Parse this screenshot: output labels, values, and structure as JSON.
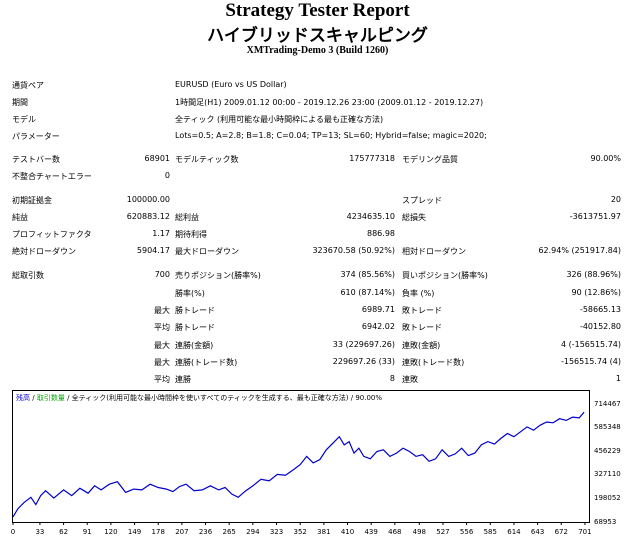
{
  "header": {
    "title": "Strategy Tester Report",
    "subtitle": "ハイブリッドスキャルピング",
    "build": "XMTrading-Demo 3 (Build 1260)"
  },
  "info": [
    {
      "label": "通貨ペア",
      "value": "EURUSD (Euro vs US Dollar)"
    },
    {
      "label": "期間",
      "value": "1時間足(H1) 2009.01.12 00:00 - 2019.12.26 23:00 (2009.01.12 - 2019.12.27)"
    },
    {
      "label": "モデル",
      "value": "全ティック (利用可能な最小時間枠による最も正確な方法)"
    },
    {
      "label": "パラメーター",
      "value": "Lots=0.5; A=2.8; B=1.8; C=0.04; TP=13; SL=60; Hybrid=false; magic=2020;"
    }
  ],
  "stats": {
    "bars_label": "テストバー数",
    "bars": "68901",
    "ticks_label": "モデルティック数",
    "ticks": "175777318",
    "quality_label": "モデリング品質",
    "quality": "90.00%",
    "mismatch_label": "不整合チャートエラー",
    "mismatch": "0",
    "deposit_label": "初期証拠金",
    "deposit": "100000.00",
    "spread_label": "スプレッド",
    "spread": "20",
    "net_label": "純益",
    "net": "620883.12",
    "gross_profit_label": "総利益",
    "gross_profit": "4234635.10",
    "gross_loss_label": "総損失",
    "gross_loss": "-3613751.97",
    "pf_label": "プロフィットファクタ",
    "pf": "1.17",
    "payoff_label": "期待利得",
    "payoff": "886.98",
    "abs_dd_label": "絶対ドローダウン",
    "abs_dd": "5904.17",
    "max_dd_label": "最大ドローダウン",
    "max_dd": "323670.58 (50.92%)",
    "rel_dd_label": "相対ドローダウン",
    "rel_dd": "62.94% (251917.84)",
    "trades_label": "総取引数",
    "trades": "700",
    "short_label": "売りポジション(勝率%)",
    "short": "374 (85.56%)",
    "long_label": "買いポジション(勝率%)",
    "long": "326 (88.96%)",
    "win_label": "勝率(%)",
    "win": "610 (87.14%)",
    "loss_label": "負率 (%)",
    "loss": "90 (12.86%)",
    "max_label": "最大",
    "avg_label": "平均",
    "largest_win_label": "勝トレード",
    "largest_win": "6989.71",
    "largest_loss_label": "敗トレード",
    "largest_loss": "-58665.13",
    "avg_win_label": "勝トレード",
    "avg_win": "6942.02",
    "avg_loss_label": "敗トレード",
    "avg_loss": "-40152.80",
    "max_cons_win_amt_label": "連勝(金額)",
    "max_cons_win_amt": "33 (229697.26)",
    "max_cons_loss_amt_label": "連敗(金額)",
    "max_cons_loss_amt": "4 (-156515.74)",
    "max_cons_win_tr_label": "連勝(トレード数)",
    "max_cons_win_tr": "229697.26 (33)",
    "max_cons_loss_tr_label": "連敗(トレード数)",
    "max_cons_loss_tr": "-156515.74 (4)",
    "avg_cons_win_label": "連勝",
    "avg_cons_win": "8",
    "avg_cons_loss_label": "連敗",
    "avg_cons_loss": "1"
  },
  "chart_legend": {
    "balance": "残高",
    "lots": "取引数量",
    "model": "全ティック(利用可能な最小時間枠を使いすべてのティックを生成する、最も正確な方法)",
    "quality": "90.00%"
  },
  "chart_data": {
    "type": "line",
    "ylim": [
      68953,
      790000
    ],
    "y_ticks": [
      "714467",
      "585348",
      "456229",
      "327110",
      "198052",
      "68953"
    ],
    "x_ticks": [
      "0",
      "33",
      "62",
      "91",
      "120",
      "149",
      "178",
      "207",
      "236",
      "265",
      "294",
      "323",
      "352",
      "381",
      "410",
      "439",
      "468",
      "498",
      "527",
      "556",
      "585",
      "614",
      "643",
      "672",
      "701"
    ],
    "series": [
      {
        "color": "#0000cc",
        "x": [
          0,
          6,
          14,
          22,
          28,
          34,
          40,
          50,
          62,
          72,
          82,
          92,
          100,
          108,
          118,
          128,
          138,
          148,
          158,
          168,
          178,
          188,
          196,
          204,
          212,
          222,
          232,
          242,
          252,
          260,
          268,
          276,
          284,
          294,
          304,
          314,
          324,
          334,
          344,
          352,
          360,
          368,
          376,
          384,
          392,
          400,
          406,
          412,
          418,
          424,
          430,
          438,
          446,
          454,
          462,
          470,
          478,
          486,
          494,
          502,
          510,
          518,
          526,
          534,
          542,
          550,
          558,
          566,
          574,
          582,
          590,
          598,
          606,
          614,
          622,
          630,
          638,
          646,
          654,
          662,
          670,
          678,
          686,
          694,
          700
        ],
        "y": [
          100000,
          150000,
          190000,
          220000,
          175000,
          230000,
          260000,
          215000,
          265000,
          230000,
          275000,
          245000,
          290000,
          265000,
          300000,
          315000,
          250000,
          270000,
          265000,
          300000,
          280000,
          270000,
          255000,
          285000,
          300000,
          260000,
          265000,
          290000,
          265000,
          280000,
          240000,
          220000,
          255000,
          290000,
          330000,
          320000,
          360000,
          355000,
          390000,
          420000,
          470000,
          430000,
          450000,
          510000,
          550000,
          590000,
          540000,
          560000,
          490000,
          520000,
          470000,
          455000,
          500000,
          510000,
          470000,
          490000,
          520000,
          500000,
          470000,
          480000,
          440000,
          455000,
          510000,
          470000,
          485000,
          520000,
          475000,
          490000,
          540000,
          560000,
          545000,
          580000,
          610000,
          590000,
          620000,
          650000,
          630000,
          660000,
          680000,
          675000,
          700000,
          690000,
          710000,
          705000,
          740000
        ]
      }
    ]
  }
}
